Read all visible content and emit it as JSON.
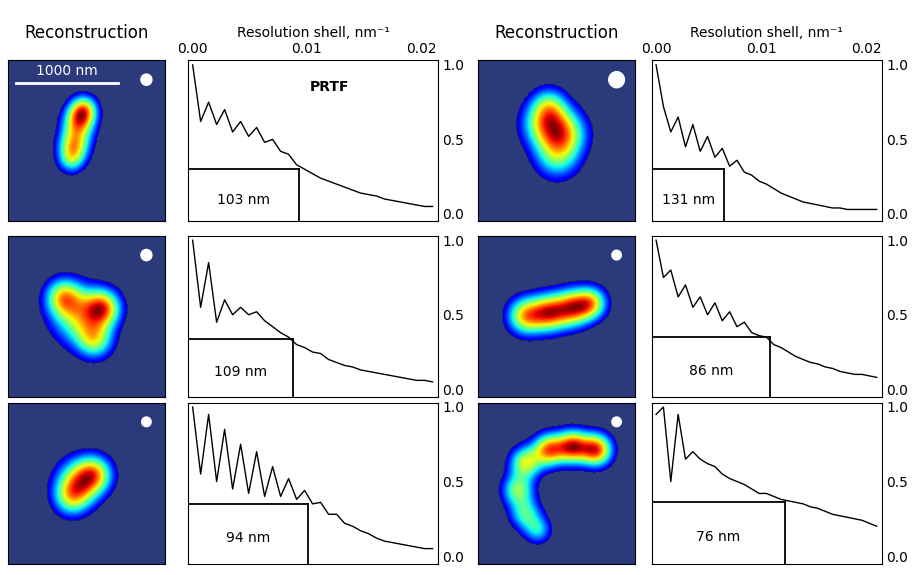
{
  "chart_data": [
    {
      "type": "line",
      "image_title": "Reconstruction",
      "scale_bar": "1000 nm",
      "xlabel": "Resolution shell, nm⁻¹",
      "annotation": "PRTF",
      "color": "#000000",
      "x": [
        0,
        0.0007,
        0.0014,
        0.0021,
        0.0028,
        0.0035,
        0.0042,
        0.0049,
        0.0056,
        0.0063,
        0.007,
        0.0077,
        0.0084,
        0.0091,
        0.0098,
        0.0105,
        0.0112,
        0.0119,
        0.0126,
        0.0133,
        0.014,
        0.0147,
        0.0154,
        0.0161,
        0.0168,
        0.0175,
        0.0182,
        0.0189,
        0.0196,
        0.0203,
        0.021
      ],
      "values": [
        1.0,
        0.62,
        0.75,
        0.6,
        0.7,
        0.55,
        0.62,
        0.52,
        0.58,
        0.48,
        0.5,
        0.42,
        0.4,
        0.33,
        0.3,
        0.27,
        0.24,
        0.22,
        0.2,
        0.18,
        0.16,
        0.14,
        0.13,
        0.12,
        0.1,
        0.09,
        0.08,
        0.07,
        0.06,
        0.05,
        0.05
      ],
      "resolution": {
        "label": "103 nm",
        "q": 0.0093,
        "prtf": 0.3
      },
      "xlim": [
        -0.0004,
        0.0215
      ],
      "ylim": [
        -0.05,
        1.03
      ],
      "xticks": [
        {
          "value": 0,
          "label": "0.00"
        },
        {
          "value": 0.01,
          "label": "0.01"
        },
        {
          "value": 0.02,
          "label": "0.02"
        }
      ],
      "yticks": [
        {
          "value": 0,
          "label": "0.0"
        },
        0.5,
        {
          "value": 1,
          "label": "1.0"
        }
      ]
    },
    {
      "type": "line",
      "image_title": "Reconstruction",
      "xlabel": "Resolution shell, nm⁻¹",
      "color": "#000000",
      "x": [
        0,
        0.0007,
        0.0014,
        0.0021,
        0.0028,
        0.0035,
        0.0042,
        0.0049,
        0.0056,
        0.0063,
        0.007,
        0.0077,
        0.0084,
        0.0091,
        0.0098,
        0.0105,
        0.0112,
        0.0119,
        0.0126,
        0.0133,
        0.014,
        0.0147,
        0.0154,
        0.0161,
        0.0168,
        0.0175,
        0.0182,
        0.0189,
        0.0196,
        0.0203,
        0.021
      ],
      "values": [
        1.0,
        0.72,
        0.55,
        0.65,
        0.45,
        0.6,
        0.42,
        0.52,
        0.38,
        0.44,
        0.32,
        0.36,
        0.28,
        0.26,
        0.22,
        0.2,
        0.17,
        0.14,
        0.12,
        0.1,
        0.08,
        0.07,
        0.06,
        0.05,
        0.04,
        0.04,
        0.03,
        0.03,
        0.03,
        0.03,
        0.03
      ],
      "resolution": {
        "label": "131 nm",
        "q": 0.0065,
        "prtf": 0.3
      },
      "xlim": [
        -0.0004,
        0.0215
      ],
      "ylim": [
        -0.05,
        1.03
      ],
      "xticks": [
        {
          "value": 0,
          "label": "0.00"
        },
        {
          "value": 0.01,
          "label": "0.01"
        },
        {
          "value": 0.02,
          "label": "0.02"
        }
      ],
      "yticks": [
        {
          "value": 0,
          "label": "0.0"
        },
        0.5,
        {
          "value": 1,
          "label": "1.0"
        }
      ]
    },
    {
      "type": "line",
      "tick_labels": "y",
      "color": "#000000",
      "x": [
        0,
        0.0007,
        0.0014,
        0.0021,
        0.0028,
        0.0035,
        0.0042,
        0.0049,
        0.0056,
        0.0063,
        0.007,
        0.0077,
        0.0084,
        0.0091,
        0.0098,
        0.0105,
        0.0112,
        0.0119,
        0.0126,
        0.0133,
        0.014,
        0.0147,
        0.0154,
        0.0161,
        0.0168,
        0.0175,
        0.0182,
        0.0189,
        0.0196,
        0.0203,
        0.021
      ],
      "values": [
        1.0,
        0.55,
        0.85,
        0.45,
        0.6,
        0.5,
        0.55,
        0.5,
        0.52,
        0.46,
        0.42,
        0.38,
        0.35,
        0.3,
        0.28,
        0.25,
        0.24,
        0.2,
        0.18,
        0.16,
        0.15,
        0.13,
        0.12,
        0.11,
        0.1,
        0.09,
        0.08,
        0.07,
        0.06,
        0.06,
        0.05
      ],
      "resolution": {
        "label": "109 nm",
        "q": 0.0088,
        "prtf": 0.34
      },
      "xlim": [
        -0.0004,
        0.0215
      ],
      "ylim": [
        -0.05,
        1.03
      ],
      "yticks": [
        {
          "value": 0,
          "label": "0.0"
        },
        0.5,
        {
          "value": 1,
          "label": "1.0"
        }
      ]
    },
    {
      "type": "line",
      "tick_labels": "y",
      "color": "#000000",
      "x": [
        0,
        0.0007,
        0.0014,
        0.0021,
        0.0028,
        0.0035,
        0.0042,
        0.0049,
        0.0056,
        0.0063,
        0.007,
        0.0077,
        0.0084,
        0.0091,
        0.0098,
        0.0105,
        0.0112,
        0.0119,
        0.0126,
        0.0133,
        0.014,
        0.0147,
        0.0154,
        0.0161,
        0.0168,
        0.0175,
        0.0182,
        0.0189,
        0.0196,
        0.0203,
        0.021
      ],
      "values": [
        1.0,
        0.75,
        0.8,
        0.62,
        0.7,
        0.55,
        0.62,
        0.5,
        0.58,
        0.46,
        0.52,
        0.42,
        0.45,
        0.38,
        0.36,
        0.35,
        0.3,
        0.28,
        0.25,
        0.22,
        0.2,
        0.18,
        0.17,
        0.15,
        0.14,
        0.12,
        0.11,
        0.1,
        0.1,
        0.09,
        0.08
      ],
      "resolution": {
        "label": "86 nm",
        "q": 0.0108,
        "prtf": 0.35
      },
      "xlim": [
        -0.0004,
        0.0215
      ],
      "ylim": [
        -0.05,
        1.03
      ],
      "yticks": [
        {
          "value": 0,
          "label": "0.0"
        },
        0.5,
        {
          "value": 1,
          "label": "1.0"
        }
      ]
    },
    {
      "type": "line",
      "tick_labels": "y",
      "color": "#000000",
      "x": [
        0,
        0.0007,
        0.0014,
        0.0021,
        0.0028,
        0.0035,
        0.0042,
        0.0049,
        0.0056,
        0.0063,
        0.007,
        0.0077,
        0.0084,
        0.0091,
        0.0098,
        0.0105,
        0.0112,
        0.0119,
        0.0126,
        0.0133,
        0.014,
        0.0147,
        0.0154,
        0.0161,
        0.0168,
        0.0175,
        0.0182,
        0.0189,
        0.0196,
        0.0203,
        0.021
      ],
      "values": [
        1.0,
        0.55,
        0.95,
        0.5,
        0.85,
        0.45,
        0.75,
        0.42,
        0.7,
        0.4,
        0.6,
        0.4,
        0.52,
        0.38,
        0.44,
        0.35,
        0.36,
        0.28,
        0.28,
        0.22,
        0.2,
        0.17,
        0.15,
        0.12,
        0.1,
        0.09,
        0.08,
        0.07,
        0.06,
        0.05,
        0.05
      ],
      "resolution": {
        "label": "94 nm",
        "q": 0.0101,
        "prtf": 0.35
      },
      "xlim": [
        -0.0004,
        0.0215
      ],
      "ylim": [
        -0.05,
        1.03
      ],
      "yticks": [
        {
          "value": 0,
          "label": "0.0"
        },
        0.5,
        {
          "value": 1,
          "label": "1.0"
        }
      ]
    },
    {
      "type": "line",
      "tick_labels": "y",
      "color": "#000000",
      "x": [
        0,
        0.0007,
        0.0014,
        0.0021,
        0.0028,
        0.0035,
        0.0042,
        0.0049,
        0.0056,
        0.0063,
        0.007,
        0.0077,
        0.0084,
        0.0091,
        0.0098,
        0.0105,
        0.0112,
        0.0119,
        0.0126,
        0.0133,
        0.014,
        0.0147,
        0.0154,
        0.0161,
        0.0168,
        0.0175,
        0.0182,
        0.0189,
        0.0196,
        0.0203,
        0.021
      ],
      "values": [
        0.95,
        1.0,
        0.5,
        0.95,
        0.65,
        0.7,
        0.65,
        0.62,
        0.6,
        0.55,
        0.52,
        0.5,
        0.48,
        0.45,
        0.42,
        0.42,
        0.4,
        0.38,
        0.37,
        0.36,
        0.35,
        0.33,
        0.32,
        0.3,
        0.28,
        0.27,
        0.26,
        0.25,
        0.24,
        0.22,
        0.2
      ],
      "resolution": {
        "label": "76 nm",
        "q": 0.0123,
        "prtf": 0.36
      },
      "xlim": [
        -0.0004,
        0.0215
      ],
      "ylim": [
        -0.05,
        1.03
      ],
      "yticks": [
        {
          "value": 0,
          "label": "0.0"
        },
        0.5,
        {
          "value": 1,
          "label": "1.0"
        }
      ]
    }
  ]
}
